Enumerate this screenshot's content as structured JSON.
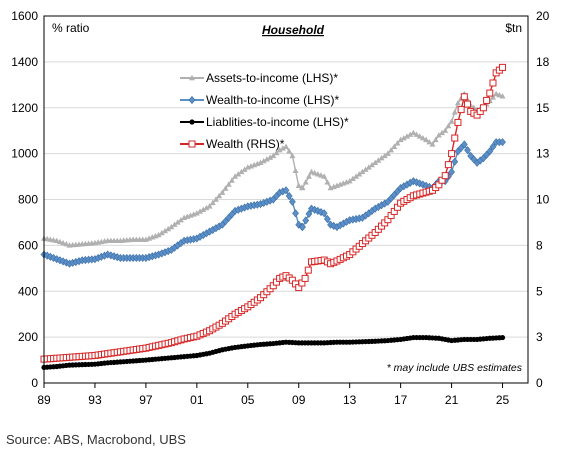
{
  "source": "Source: ABS, Macrobond, UBS",
  "chart_data": {
    "type": "line",
    "title": "Household",
    "ylabel_left": "% ratio",
    "ylabel_right": "$tn",
    "footnote": "* may include UBS estimates",
    "legend_position": "top-center",
    "grid": "horizontal",
    "x_range": [
      1989,
      2027
    ],
    "x_tick_labels": [
      "89",
      "93",
      "97",
      "01",
      "05",
      "09",
      "13",
      "17",
      "21",
      "25"
    ],
    "x_ticks": [
      1989,
      1993,
      1997,
      2001,
      2005,
      2009,
      2013,
      2017,
      2021,
      2025
    ],
    "ylim_left": [
      0,
      1600
    ],
    "yticks_left": [
      "0",
      "200",
      "400",
      "600",
      "800",
      "1000",
      "1200",
      "1400",
      "1600"
    ],
    "ylim_right": [
      0,
      20
    ],
    "yticks_right": [
      "0",
      "3",
      "5",
      "8",
      "10",
      "13",
      "15",
      "18",
      "20"
    ],
    "series": [
      {
        "name": "Assets-to-income (LHS)*",
        "axis": "left",
        "color": "#b0b0b0",
        "marker": "triangle",
        "points": [
          [
            1989,
            630
          ],
          [
            1990,
            620
          ],
          [
            1991,
            600
          ],
          [
            1992,
            605
          ],
          [
            1993,
            610
          ],
          [
            1994,
            620
          ],
          [
            1995,
            620
          ],
          [
            1996,
            625
          ],
          [
            1997,
            625
          ],
          [
            1998,
            645
          ],
          [
            1999,
            680
          ],
          [
            2000,
            720
          ],
          [
            2001,
            740
          ],
          [
            2002,
            770
          ],
          [
            2003,
            830
          ],
          [
            2004,
            900
          ],
          [
            2005,
            940
          ],
          [
            2006,
            960
          ],
          [
            2007,
            990
          ],
          [
            2007.5,
            1015
          ],
          [
            2008,
            1030
          ],
          [
            2008.5,
            990
          ],
          [
            2009,
            860
          ],
          [
            2009.3,
            850
          ],
          [
            2010,
            920
          ],
          [
            2011,
            900
          ],
          [
            2011.5,
            850
          ],
          [
            2012,
            860
          ],
          [
            2013,
            880
          ],
          [
            2014,
            920
          ],
          [
            2015,
            960
          ],
          [
            2016,
            1000
          ],
          [
            2017,
            1060
          ],
          [
            2018,
            1090
          ],
          [
            2019,
            1060
          ],
          [
            2019.5,
            1040
          ],
          [
            2020,
            1080
          ],
          [
            2020.5,
            1100
          ],
          [
            2021,
            1140
          ],
          [
            2021.5,
            1220
          ],
          [
            2022,
            1260
          ],
          [
            2022.5,
            1210
          ],
          [
            2023,
            1190
          ],
          [
            2023.5,
            1200
          ],
          [
            2024,
            1230
          ],
          [
            2024.5,
            1260
          ],
          [
            2025,
            1250
          ]
        ]
      },
      {
        "name": "Wealth-to-income (LHS)*",
        "axis": "left",
        "color": "#5b8fc7",
        "marker": "diamond",
        "points": [
          [
            1989,
            560
          ],
          [
            1990,
            540
          ],
          [
            1991,
            520
          ],
          [
            1992,
            535
          ],
          [
            1993,
            540
          ],
          [
            1994,
            560
          ],
          [
            1995,
            545
          ],
          [
            1996,
            545
          ],
          [
            1997,
            545
          ],
          [
            1998,
            560
          ],
          [
            1999,
            580
          ],
          [
            2000,
            620
          ],
          [
            2001,
            630
          ],
          [
            2002,
            660
          ],
          [
            2003,
            690
          ],
          [
            2004,
            750
          ],
          [
            2005,
            770
          ],
          [
            2006,
            780
          ],
          [
            2007,
            800
          ],
          [
            2007.5,
            830
          ],
          [
            2008,
            840
          ],
          [
            2008.5,
            790
          ],
          [
            2009,
            690
          ],
          [
            2009.3,
            680
          ],
          [
            2010,
            760
          ],
          [
            2011,
            740
          ],
          [
            2011.5,
            690
          ],
          [
            2012,
            680
          ],
          [
            2013,
            710
          ],
          [
            2014,
            720
          ],
          [
            2015,
            760
          ],
          [
            2016,
            790
          ],
          [
            2017,
            850
          ],
          [
            2018,
            880
          ],
          [
            2019,
            860
          ],
          [
            2019.5,
            850
          ],
          [
            2020,
            880
          ],
          [
            2020.5,
            880
          ],
          [
            2021,
            920
          ],
          [
            2021.5,
            1010
          ],
          [
            2022,
            1040
          ],
          [
            2022.5,
            990
          ],
          [
            2023,
            960
          ],
          [
            2023.5,
            980
          ],
          [
            2024,
            1010
          ],
          [
            2024.5,
            1050
          ],
          [
            2025,
            1050
          ]
        ]
      },
      {
        "name": "Liablities-to-income (LHS)*",
        "axis": "left",
        "color": "#000000",
        "marker": "circle",
        "points": [
          [
            1989,
            68
          ],
          [
            1990,
            72
          ],
          [
            1991,
            78
          ],
          [
            1992,
            80
          ],
          [
            1993,
            82
          ],
          [
            1994,
            88
          ],
          [
            1995,
            92
          ],
          [
            1996,
            96
          ],
          [
            1997,
            100
          ],
          [
            1998,
            105
          ],
          [
            1999,
            110
          ],
          [
            2000,
            115
          ],
          [
            2001,
            120
          ],
          [
            2002,
            130
          ],
          [
            2003,
            145
          ],
          [
            2004,
            155
          ],
          [
            2005,
            162
          ],
          [
            2006,
            168
          ],
          [
            2007,
            172
          ],
          [
            2008,
            178
          ],
          [
            2009,
            175
          ],
          [
            2010,
            175
          ],
          [
            2011,
            175
          ],
          [
            2012,
            178
          ],
          [
            2013,
            178
          ],
          [
            2014,
            180
          ],
          [
            2015,
            182
          ],
          [
            2016,
            185
          ],
          [
            2017,
            190
          ],
          [
            2018,
            198
          ],
          [
            2019,
            198
          ],
          [
            2020,
            195
          ],
          [
            2021,
            185
          ],
          [
            2022,
            190
          ],
          [
            2023,
            190
          ],
          [
            2024,
            195
          ],
          [
            2025,
            198
          ]
        ]
      },
      {
        "name": "Wealth (RHS)*",
        "axis": "right",
        "color": "#d62728",
        "marker": "square",
        "points": [
          [
            1989,
            1.3
          ],
          [
            1990,
            1.35
          ],
          [
            1991,
            1.4
          ],
          [
            1992,
            1.45
          ],
          [
            1993,
            1.5
          ],
          [
            1994,
            1.6
          ],
          [
            1995,
            1.7
          ],
          [
            1996,
            1.8
          ],
          [
            1997,
            1.9
          ],
          [
            1998,
            2.05
          ],
          [
            1999,
            2.2
          ],
          [
            2000,
            2.4
          ],
          [
            2001,
            2.55
          ],
          [
            2002,
            2.85
          ],
          [
            2003,
            3.25
          ],
          [
            2004,
            3.75
          ],
          [
            2005,
            4.15
          ],
          [
            2006,
            4.65
          ],
          [
            2007,
            5.3
          ],
          [
            2007.5,
            5.7
          ],
          [
            2008,
            5.85
          ],
          [
            2008.5,
            5.6
          ],
          [
            2009,
            5.2
          ],
          [
            2009.5,
            5.7
          ],
          [
            2010,
            6.6
          ],
          [
            2011,
            6.7
          ],
          [
            2011.5,
            6.5
          ],
          [
            2012,
            6.65
          ],
          [
            2013,
            7.0
          ],
          [
            2014,
            7.6
          ],
          [
            2015,
            8.2
          ],
          [
            2016,
            8.9
          ],
          [
            2017,
            9.8
          ],
          [
            2018,
            10.2
          ],
          [
            2019,
            10.4
          ],
          [
            2019.5,
            10.5
          ],
          [
            2020,
            10.8
          ],
          [
            2020.5,
            11.3
          ],
          [
            2021,
            12.5
          ],
          [
            2021.5,
            14.2
          ],
          [
            2022,
            15.6
          ],
          [
            2022.5,
            14.8
          ],
          [
            2023,
            14.6
          ],
          [
            2023.5,
            15.0
          ],
          [
            2024,
            15.8
          ],
          [
            2024.5,
            16.9
          ],
          [
            2025,
            17.2
          ]
        ]
      }
    ]
  }
}
